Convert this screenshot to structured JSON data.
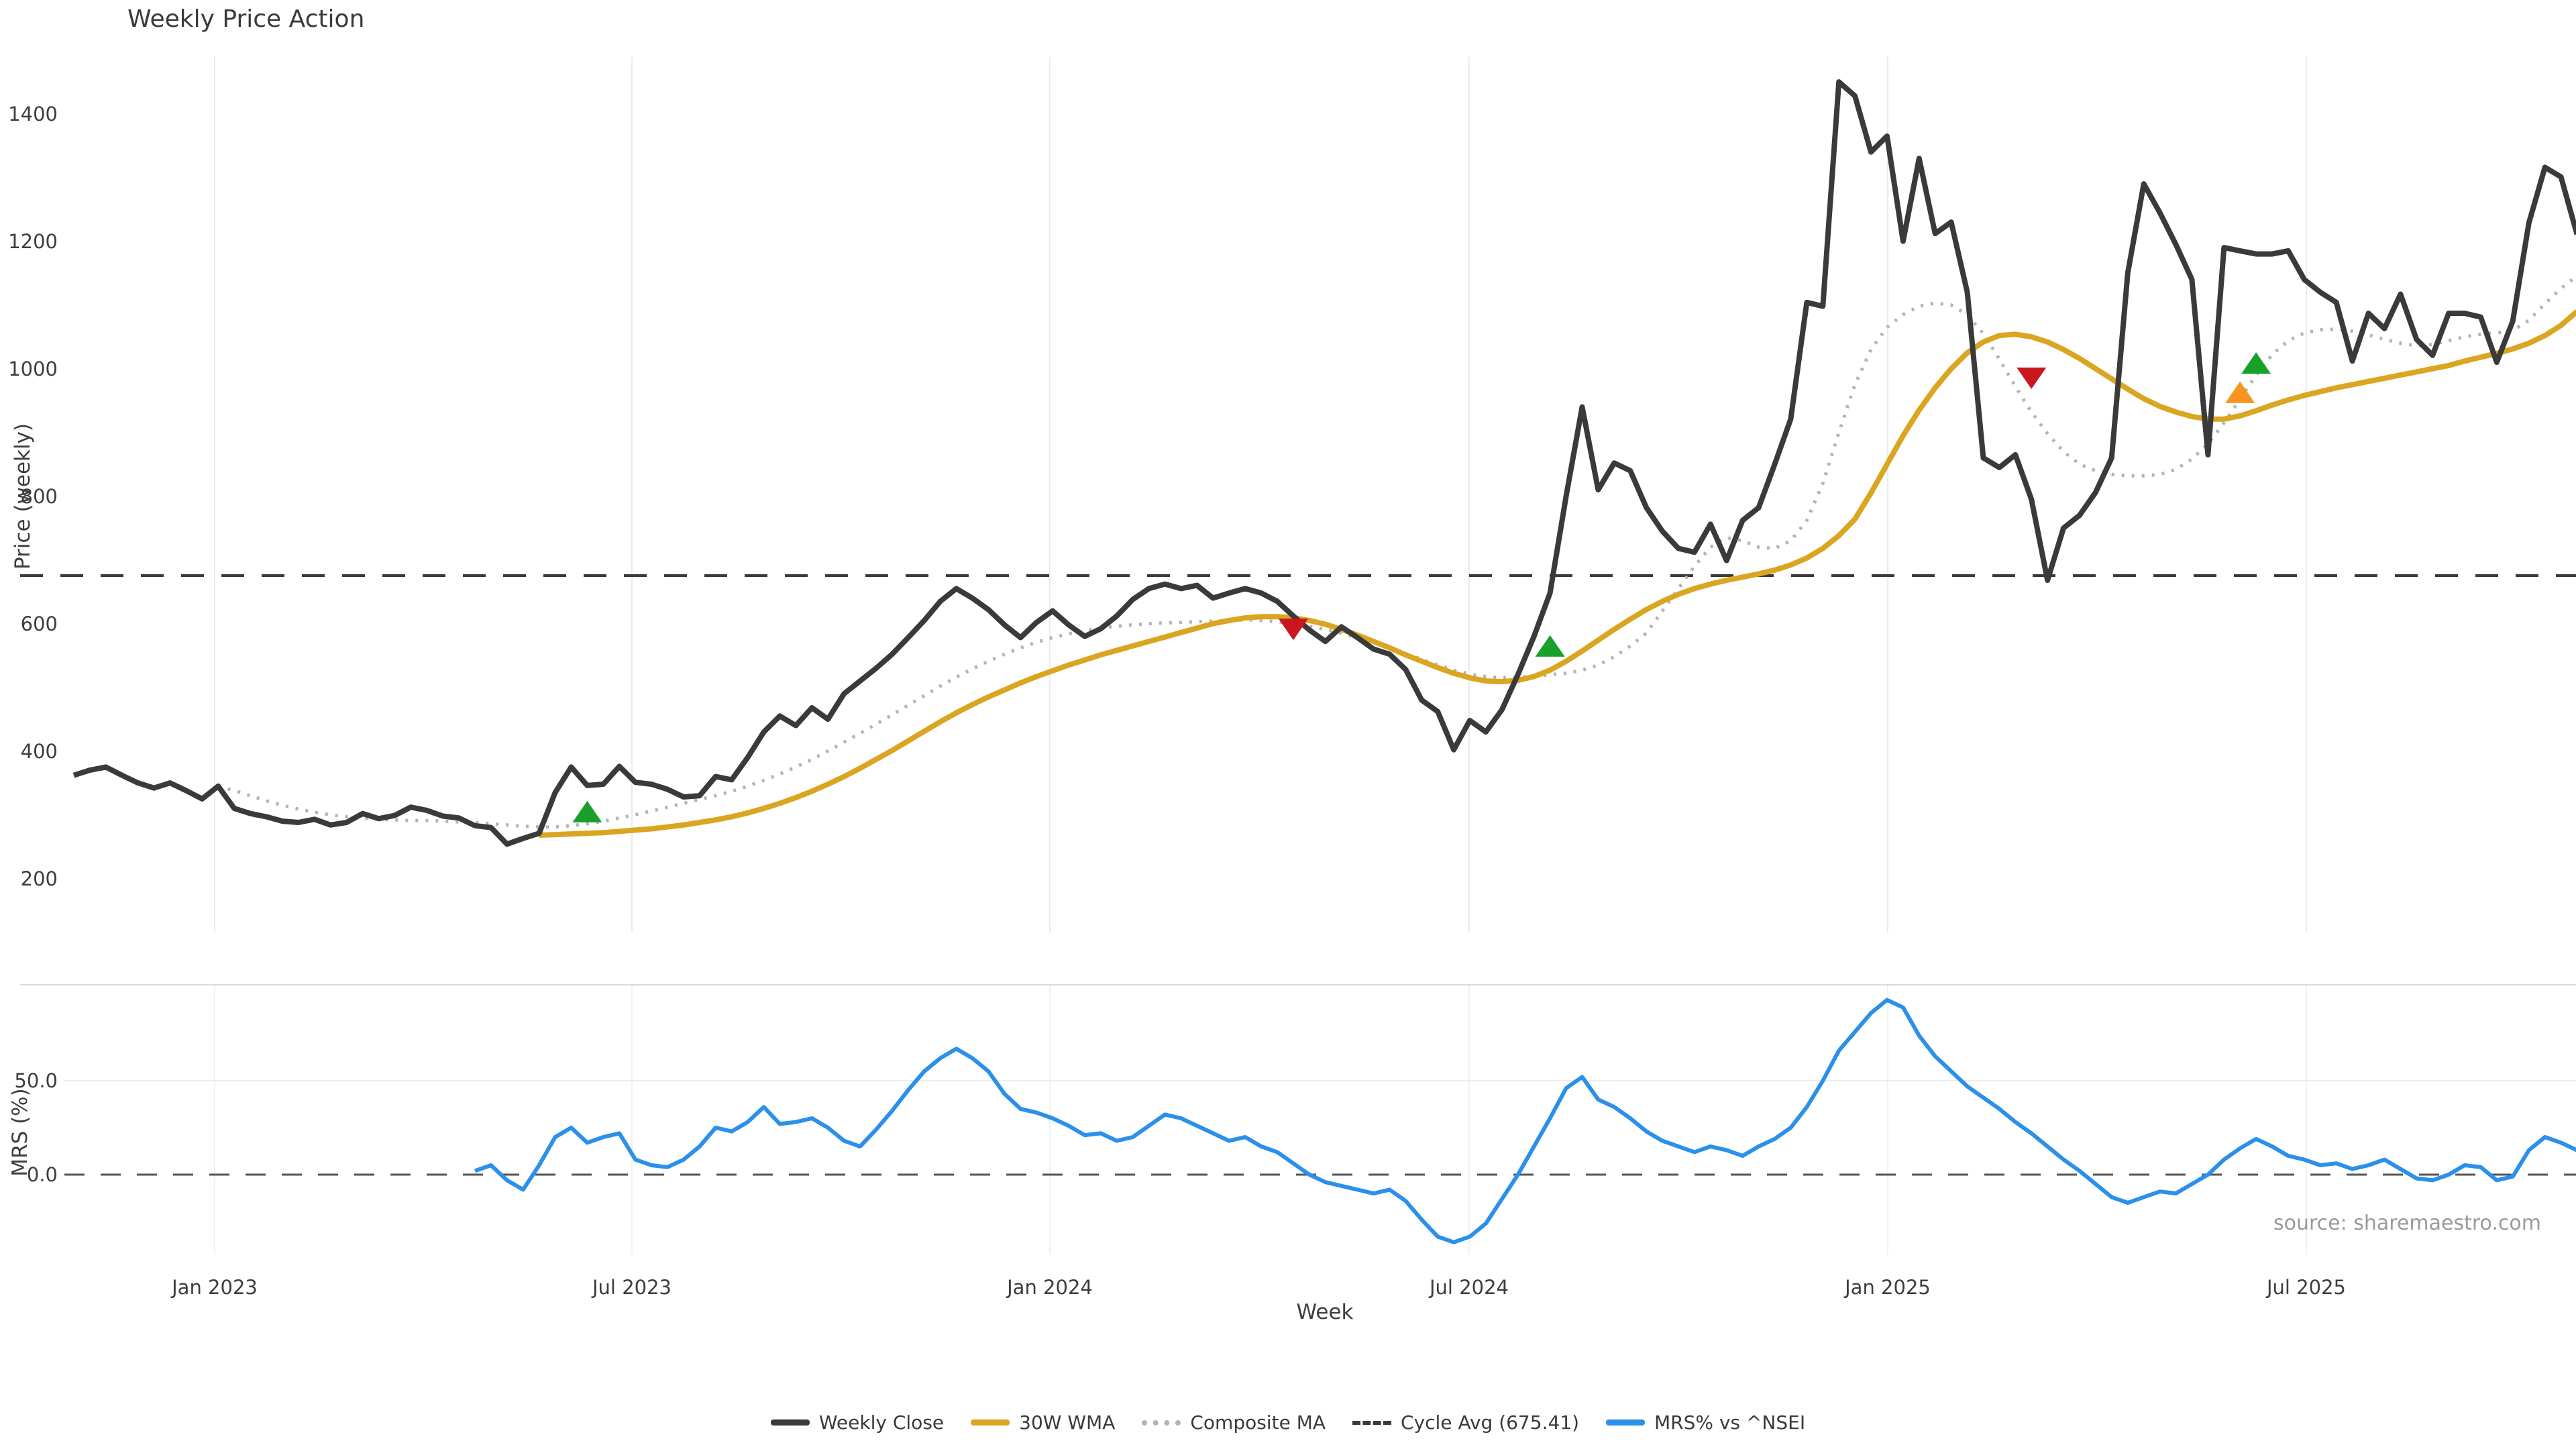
{
  "title": "Weekly Price Action",
  "source": "source: sharemaestro.com",
  "axes": {
    "price_label": "Price (weekly)",
    "mrs_label": "MRS (%)",
    "x_label": "Week",
    "price_ticks": [
      200,
      400,
      600,
      800,
      1000,
      1200,
      1400
    ],
    "mrs_ticks": [
      {
        "label": "50.0",
        "value": 50
      },
      {
        "label": "0.0",
        "value": 0
      }
    ],
    "x_ticks": [
      "Jan 2023",
      "Jul 2023",
      "Jan 2024",
      "Jul 2024",
      "Jan 2025",
      "Jul 2025"
    ]
  },
  "legend": [
    {
      "label": "Weekly Close",
      "style": "solid",
      "color": "#3a3a3a"
    },
    {
      "label": "30W WMA",
      "style": "solid",
      "color": "#DAA520"
    },
    {
      "label": "Composite MA",
      "style": "dotted",
      "color": "#b3b3b3"
    },
    {
      "label": "Cycle Avg (675.41)",
      "style": "dashed",
      "color": "#3a3a3a"
    },
    {
      "label": "MRS% vs ^NSEI",
      "style": "solid",
      "color": "#2B90E9"
    }
  ],
  "chart_data": {
    "type": "line",
    "x_unit": "week",
    "x_range_label": [
      "Oct 2022",
      "Nov 2025"
    ],
    "x_tick_labels": [
      "Jan 2023",
      "Jul 2023",
      "Jan 2024",
      "Jul 2024",
      "Jan 2025",
      "Jul 2025"
    ],
    "top_panel": {
      "ylabel": "Price (weekly)",
      "ylim": [
        150,
        1520
      ],
      "yticks": [
        200,
        400,
        600,
        800,
        1000,
        1200,
        1400
      ]
    },
    "bottom_panel": {
      "ylabel": "MRS (%)",
      "yticks": [
        0,
        50
      ],
      "zero_line": true
    },
    "cycle_avg": 675.41,
    "series": [
      {
        "name": "Weekly Close",
        "color": "#3a3a3a",
        "style": "solid",
        "panel": "price",
        "values": [
          362,
          370,
          375,
          362,
          350,
          342,
          350,
          338,
          325,
          345,
          310,
          302,
          297,
          290,
          288,
          293,
          284,
          288,
          302,
          294,
          299,
          312,
          307,
          298,
          295,
          283,
          280,
          254,
          263,
          271,
          335,
          375,
          346,
          348,
          376,
          351,
          348,
          340,
          328,
          330,
          360,
          355,
          390,
          430,
          455,
          440,
          468,
          450,
          490,
          510,
          530,
          552,
          578,
          605,
          635,
          655,
          640,
          622,
          598,
          578,
          602,
          620,
          598,
          580,
          592,
          612,
          638,
          655,
          662,
          655,
          660,
          640,
          648,
          655,
          648,
          635,
          612,
          590,
          572,
          595,
          578,
          560,
          552,
          528,
          480,
          462,
          402,
          448,
          430,
          465,
          520,
          580,
          648,
          800,
          940,
          810,
          852,
          840,
          782,
          745,
          718,
          712,
          756,
          699,
          762,
          782,
          850,
          921,
          1104,
          1098,
          1450,
          1428,
          1340,
          1365,
          1200,
          1330,
          1212,
          1230,
          1120,
          860,
          845,
          865,
          795,
          668,
          750,
          770,
          806,
          860,
          1150,
          1290,
          1245,
          1195,
          1140,
          865,
          1190,
          1185,
          1180,
          1180,
          1185,
          1140,
          1120,
          1104,
          1012,
          1087,
          1063,
          1117,
          1046,
          1021,
          1087,
          1087,
          1081,
          1010,
          1075,
          1229,
          1316,
          1301,
          1211
        ]
      },
      {
        "name": "30W WMA",
        "color": "#DAA520",
        "style": "solid",
        "panel": "price",
        "values": [
          null,
          null,
          null,
          null,
          null,
          null,
          null,
          null,
          null,
          null,
          null,
          null,
          null,
          null,
          null,
          null,
          null,
          null,
          null,
          null,
          null,
          null,
          null,
          null,
          null,
          null,
          null,
          null,
          null,
          268,
          269,
          270,
          271,
          272,
          274,
          276,
          278,
          281,
          284,
          288,
          292,
          297,
          303,
          310,
          318,
          327,
          337,
          348,
          360,
          373,
          387,
          401,
          416,
          431,
          446,
          460,
          473,
          485,
          496,
          507,
          517,
          526,
          535,
          543,
          551,
          558,
          565,
          572,
          579,
          586,
          593,
          600,
          605,
          609,
          611,
          611,
          609,
          605,
          599,
          591,
          582,
          572,
          562,
          551,
          541,
          531,
          522,
          515,
          510,
          509,
          511,
          517,
          527,
          541,
          557,
          574,
          591,
          607,
          622,
          635,
          646,
          655,
          662,
          668,
          673,
          678,
          684,
          692,
          703,
          718,
          738,
          764,
          805,
          850,
          895,
          935,
          970,
          1000,
          1025,
          1042,
          1052,
          1054,
          1050,
          1042,
          1030,
          1016,
          1000,
          984,
          968,
          953,
          941,
          932,
          925,
          921,
          921,
          926,
          934,
          943,
          951,
          958,
          964,
          970,
          975,
          980,
          985,
          990,
          995,
          1000,
          1005,
          1012,
          1018,
          1024,
          1031,
          1040,
          1052,
          1068,
          1090
        ]
      },
      {
        "name": "Composite MA",
        "color": "#b3b3b3",
        "style": "dotted",
        "panel": "price",
        "values": [
          null,
          null,
          null,
          null,
          null,
          null,
          null,
          null,
          null,
          345,
          338,
          330,
          322,
          315,
          309,
          304,
          300,
          297,
          295,
          293,
          292,
          291,
          291,
          290,
          289,
          288,
          286,
          284,
          282,
          281,
          281,
          283,
          286,
          290,
          295,
          300,
          306,
          312,
          318,
          324,
          330,
          337,
          345,
          354,
          364,
          375,
          387,
          400,
          414,
          428,
          442,
          457,
          472,
          487,
          502,
          516,
          529,
          541,
          552,
          562,
          571,
          578,
          584,
          589,
          593,
          596,
          598,
          600,
          601,
          602,
          603,
          604,
          605,
          606,
          605,
          603,
          600,
          596,
          591,
          585,
          578,
          570,
          562,
          553,
          544,
          535,
          527,
          521,
          517,
          515,
          516,
          517,
          520,
          522,
          527,
          535,
          548,
          565,
          585,
          620,
          655,
          690,
          720,
          735,
          730,
          720,
          718,
          730,
          762,
          820,
          900,
          975,
          1030,
          1065,
          1085,
          1098,
          1103,
          1100,
          1085,
          1055,
          1015,
          972,
          932,
          898,
          870,
          850,
          840,
          834,
          832,
          832,
          834,
          842,
          858,
          882,
          915,
          952,
          990,
          1022,
          1044,
          1056,
          1061,
          1062,
          1059,
          1053,
          1046,
          1040,
          1036,
          1038,
          1044,
          1050,
          1054,
          1056,
          1060,
          1076,
          1102,
          1126,
          1146
        ]
      },
      {
        "name": "MRS% vs ^NSEI",
        "color": "#2B90E9",
        "style": "solid",
        "panel": "mrs",
        "values": [
          null,
          null,
          null,
          null,
          null,
          null,
          null,
          null,
          null,
          null,
          null,
          null,
          null,
          null,
          null,
          null,
          null,
          null,
          null,
          null,
          null,
          null,
          null,
          null,
          null,
          2,
          5,
          -3,
          -8,
          5,
          20,
          25,
          17,
          20,
          22,
          8,
          5,
          4,
          8,
          15,
          25,
          23,
          28,
          36,
          27,
          28,
          30,
          25,
          18,
          15,
          24,
          34,
          45,
          55,
          62,
          67,
          62,
          55,
          43,
          35,
          33,
          30,
          26,
          21,
          22,
          18,
          20,
          26,
          32,
          30,
          26,
          22,
          18,
          20,
          15,
          12,
          6,
          0,
          -4,
          -6,
          -8,
          -10,
          -8,
          -14,
          -24,
          -33,
          -36,
          -33,
          -26,
          -13,
          0,
          15,
          30,
          46,
          52,
          40,
          36,
          30,
          23,
          18,
          15,
          12,
          15,
          13,
          10,
          15,
          19,
          25,
          36,
          50,
          66,
          76,
          86,
          93,
          89,
          74,
          63,
          55,
          47,
          41,
          35,
          28,
          22,
          15,
          8,
          2,
          -5,
          -12,
          -15,
          -12,
          -9,
          -10,
          -5,
          0,
          8,
          14,
          19,
          15,
          10,
          8,
          5,
          6,
          3,
          5,
          8,
          3,
          -2,
          -3,
          0,
          5,
          4,
          -3,
          -1,
          13,
          20,
          17,
          13
        ]
      }
    ],
    "markers": [
      {
        "week": 32,
        "price": 305,
        "direction": "up",
        "color": "#17a02a"
      },
      {
        "week": 76,
        "price": 591,
        "direction": "down",
        "color": "#c9161f"
      },
      {
        "week": 92,
        "price": 565,
        "direction": "up",
        "color": "#17a02a"
      },
      {
        "week": 122,
        "price": 985,
        "direction": "down",
        "color": "#c9161f"
      },
      {
        "week": 135,
        "price": 963,
        "direction": "up",
        "color": "#f7941d"
      },
      {
        "week": 136,
        "price": 1009,
        "direction": "up",
        "color": "#17a02a"
      }
    ]
  }
}
